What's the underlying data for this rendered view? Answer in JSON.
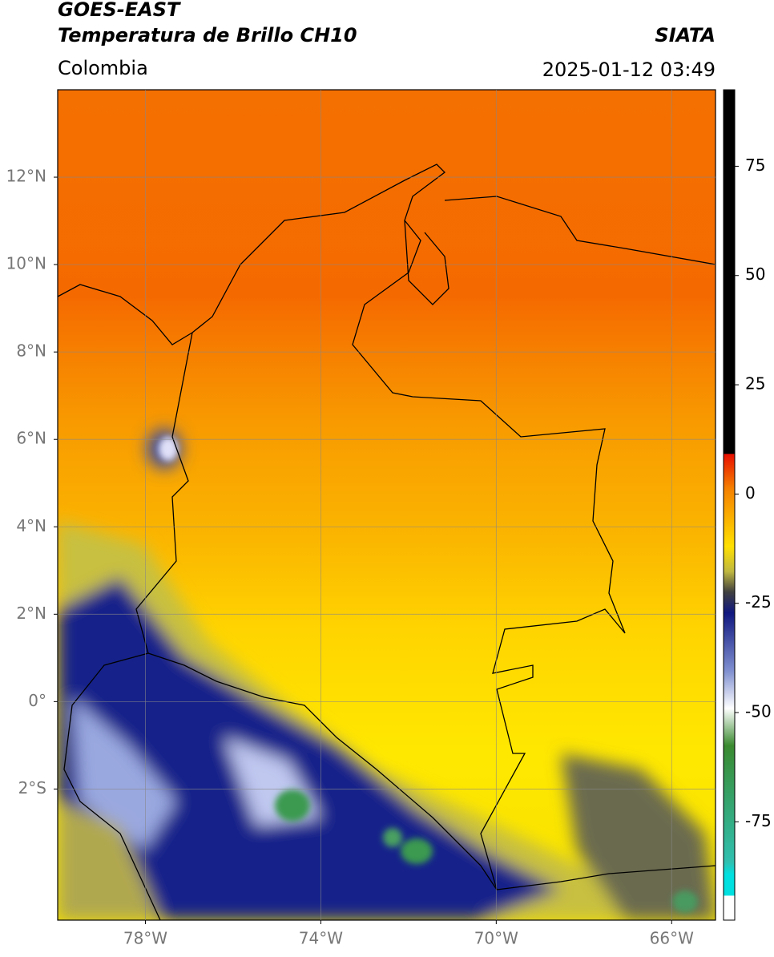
{
  "header": {
    "title": "GOES-EAST",
    "subtitle": "Temperatura de Brillo CH10",
    "region": "Colombia",
    "source": "SIATA",
    "datetime": "2025-01-12 03:49"
  },
  "map": {
    "xlim": [
      -80,
      -65
    ],
    "ylim": [
      -5,
      14
    ],
    "grid": true,
    "xticks": [
      {
        "value": -78,
        "label": "78°W"
      },
      {
        "value": -74,
        "label": "74°W"
      },
      {
        "value": -70,
        "label": "70°W"
      },
      {
        "value": -66,
        "label": "66°W"
      }
    ],
    "yticks": [
      {
        "value": 12,
        "label": "12°N"
      },
      {
        "value": 10,
        "label": "10°N"
      },
      {
        "value": 8,
        "label": "8°N"
      },
      {
        "value": 6,
        "label": "6°N"
      },
      {
        "value": 4,
        "label": "4°N"
      },
      {
        "value": 2,
        "label": "2°N"
      },
      {
        "value": 0,
        "label": "0°"
      },
      {
        "value": -2,
        "label": "2°S"
      }
    ]
  },
  "colorbar": {
    "lim": [
      -97.5,
      92.5
    ],
    "ticks": [
      75,
      50,
      25,
      0,
      -25,
      -50,
      -75
    ]
  }
}
